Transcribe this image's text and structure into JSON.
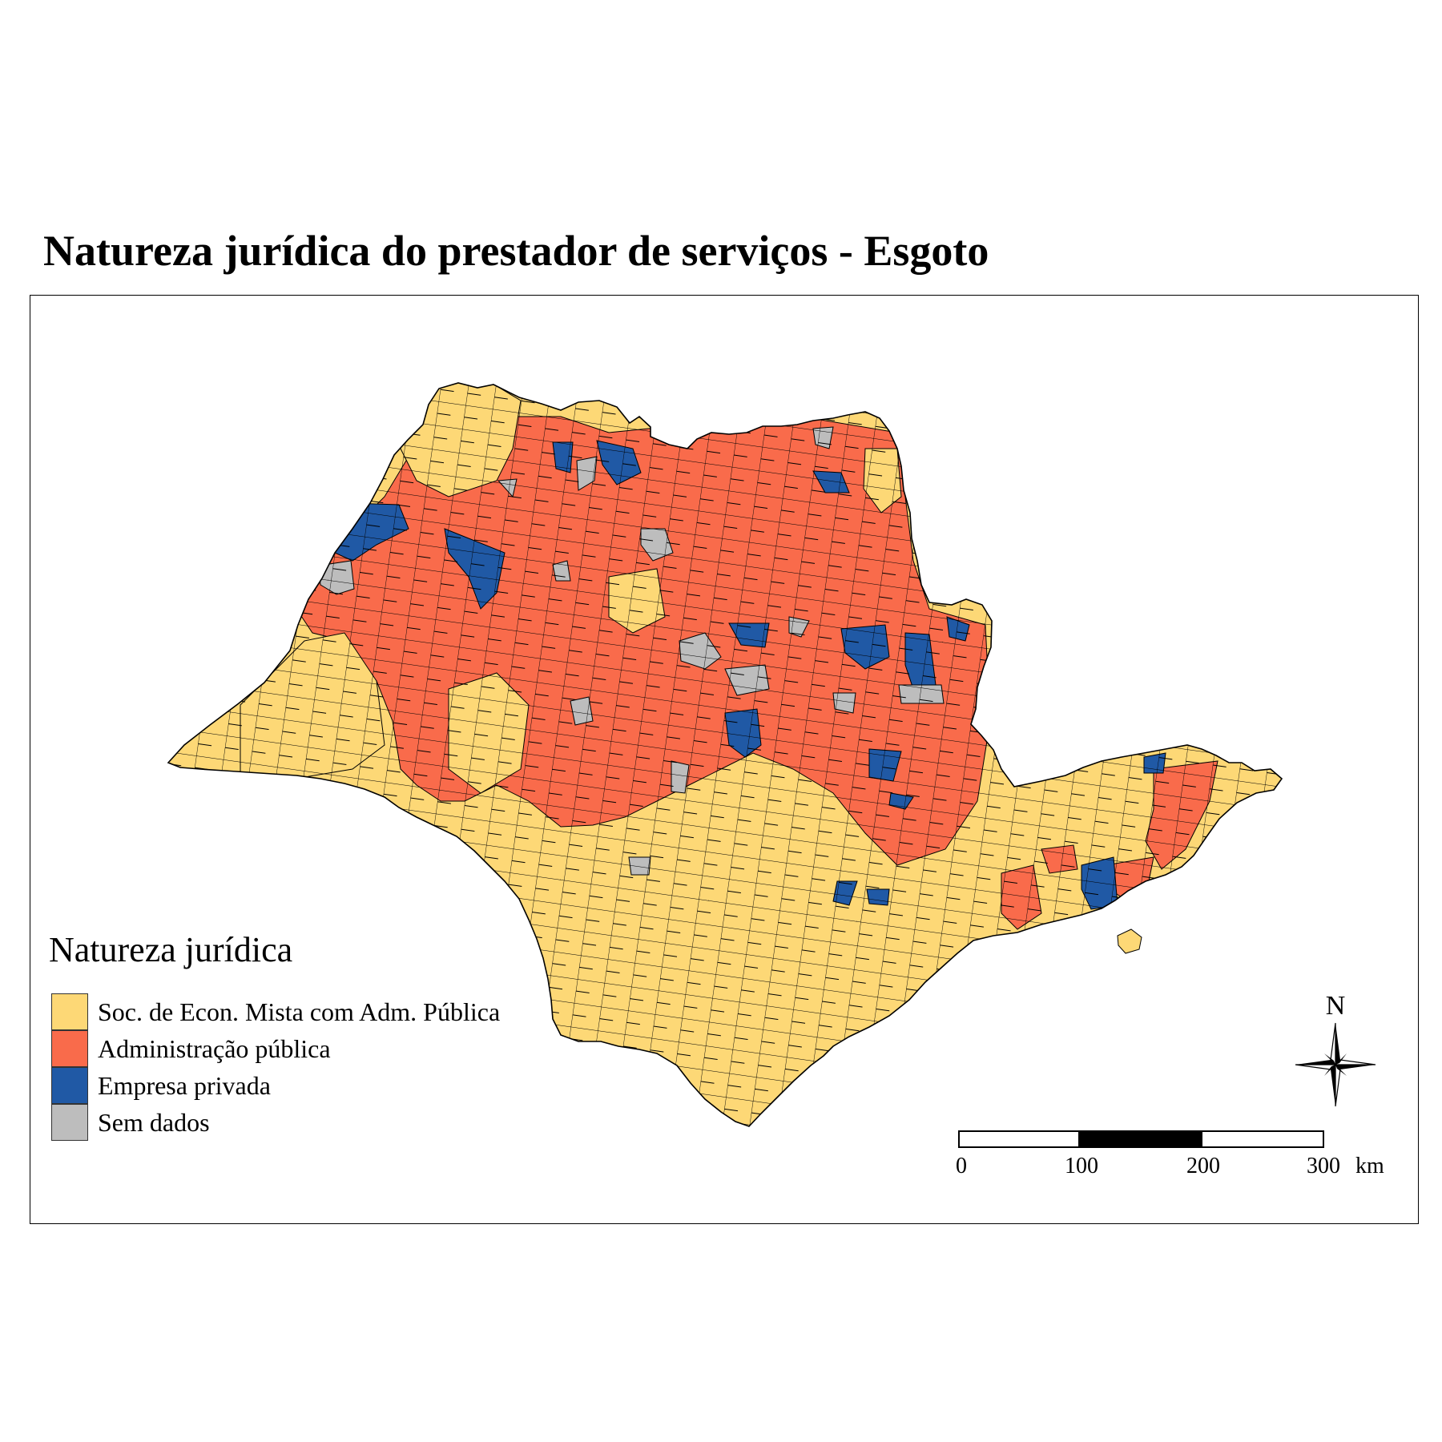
{
  "title": "Natureza jurídica do prestador de serviços - Esgoto",
  "legend": {
    "title": "Natureza jurídica",
    "items": [
      {
        "label": "Soc. de Econ. Mista com Adm. Pública",
        "color": "#FDD876"
      },
      {
        "label": "Administração pública",
        "color": "#F96B4B"
      },
      {
        "label": "Empresa privada",
        "color": "#2059A5"
      },
      {
        "label": "Sem dados",
        "color": "#BDBDBD"
      }
    ]
  },
  "scale_bar": {
    "ticks": [
      "0",
      "100",
      "200",
      "300"
    ],
    "unit": "km"
  },
  "north_arrow": {
    "label": "N",
    "icon": "compass-rose-icon"
  },
  "colors": {
    "soc_economia_mista": "#FDD876",
    "administracao_publica": "#F96B4B",
    "empresa_privada": "#2059A5",
    "sem_dados": "#BDBDBD",
    "border": "#000000"
  }
}
